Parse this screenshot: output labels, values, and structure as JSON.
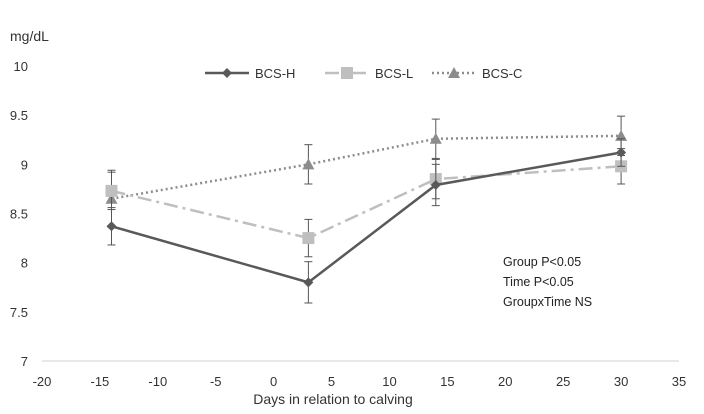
{
  "chart_data": {
    "type": "line",
    "ylabel": "mg/dL",
    "xlabel": "Days in relation to calving",
    "xlim": [
      -20,
      35
    ],
    "ylim": [
      7,
      10
    ],
    "x_ticks": [
      -20,
      -15,
      -10,
      -5,
      0,
      5,
      10,
      15,
      20,
      25,
      30,
      35
    ],
    "y_ticks": [
      7,
      7.5,
      8,
      8.5,
      9,
      9.5,
      10
    ],
    "y_tick_labels": [
      "7",
      "7.5",
      "8",
      "8.5",
      "9",
      "9.5",
      "10"
    ],
    "grid": false,
    "legend_position": "top-center",
    "series": [
      {
        "name": "BCS-H",
        "color": "#595959",
        "marker": "diamond",
        "line_style": "solid",
        "points": [
          {
            "x": -14,
            "y": 8.37,
            "err": 0.19
          },
          {
            "x": 3,
            "y": 7.8,
            "err": 0.21
          },
          {
            "x": 14,
            "y": 8.79,
            "err": 0.21
          },
          {
            "x": 30,
            "y": 9.12,
            "err": 0.14
          }
        ]
      },
      {
        "name": "BCS-L",
        "color": "#bfbfbf",
        "marker": "square",
        "line_style": "dashdot",
        "points": [
          {
            "x": -14,
            "y": 8.73,
            "err": 0.19
          },
          {
            "x": 3,
            "y": 8.25,
            "err": 0.19
          },
          {
            "x": 14,
            "y": 8.85,
            "err": 0.2
          },
          {
            "x": 30,
            "y": 8.98,
            "err": 0.18
          }
        ]
      },
      {
        "name": "BCS-C",
        "color": "#8c8c8c",
        "marker": "triangle",
        "line_style": "dotted",
        "points": [
          {
            "x": -14,
            "y": 8.65,
            "err": 0.29
          },
          {
            "x": 3,
            "y": 9.0,
            "err": 0.2
          },
          {
            "x": 14,
            "y": 9.26,
            "err": 0.2
          },
          {
            "x": 30,
            "y": 9.29,
            "err": 0.2
          }
        ]
      }
    ],
    "annotations": [
      "Group P<0.05",
      "Time P<0.05",
      "GroupxTime NS"
    ]
  }
}
